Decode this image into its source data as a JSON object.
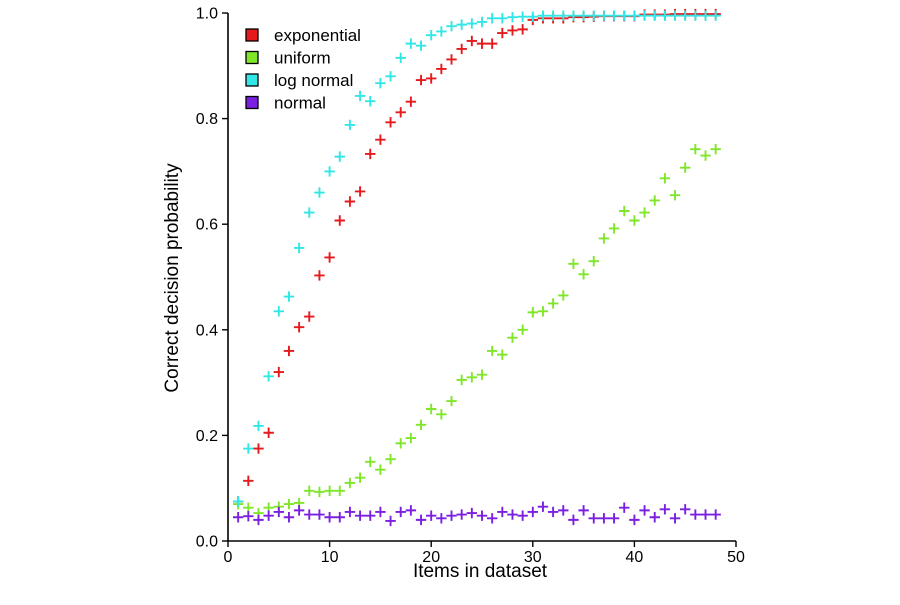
{
  "chart_data": {
    "type": "scatter",
    "xlabel": "Items in dataset",
    "ylabel": "Correct decision probability",
    "xlim": [
      0,
      50
    ],
    "ylim": [
      0,
      1
    ],
    "x_ticks": [
      "0",
      "10",
      "20",
      "30",
      "40",
      "50"
    ],
    "y_ticks": [
      "0.0",
      "0.2",
      "0.4",
      "0.6",
      "0.8",
      "1.0"
    ],
    "grid": false,
    "legend": "top-left",
    "marker": "plus",
    "x": [
      1,
      2,
      3,
      4,
      5,
      6,
      7,
      8,
      9,
      10,
      11,
      12,
      13,
      14,
      15,
      16,
      17,
      18,
      19,
      20,
      21,
      22,
      23,
      24,
      25,
      26,
      27,
      28,
      29,
      30,
      31,
      32,
      33,
      34,
      35,
      36,
      37,
      38,
      39,
      40,
      41,
      42,
      43,
      44,
      45,
      46,
      47,
      48
    ],
    "series": [
      {
        "name": "exponential",
        "color": "#e41a1c",
        "values": [
          0.075,
          0.114,
          0.175,
          0.205,
          0.32,
          0.36,
          0.405,
          0.425,
          0.503,
          0.537,
          0.607,
          0.643,
          0.662,
          0.733,
          0.76,
          0.793,
          0.812,
          0.832,
          0.873,
          0.876,
          0.894,
          0.912,
          0.932,
          0.947,
          0.942,
          0.942,
          0.962,
          0.967,
          0.969,
          0.987,
          0.99,
          0.99,
          0.99,
          0.992,
          0.992,
          0.993,
          0.994,
          0.994,
          0.994,
          0.994,
          0.997,
          0.997,
          0.997,
          0.998,
          0.998,
          0.998,
          0.998,
          0.998
        ]
      },
      {
        "name": "uniform",
        "color": "#7fe62a",
        "values": [
          0.07,
          0.063,
          0.053,
          0.063,
          0.065,
          0.07,
          0.072,
          0.095,
          0.093,
          0.095,
          0.095,
          0.11,
          0.12,
          0.15,
          0.135,
          0.155,
          0.185,
          0.195,
          0.22,
          0.25,
          0.24,
          0.265,
          0.305,
          0.31,
          0.315,
          0.36,
          0.353,
          0.385,
          0.4,
          0.433,
          0.435,
          0.45,
          0.465,
          0.525,
          0.505,
          0.53,
          0.573,
          0.592,
          0.625,
          0.607,
          0.622,
          0.645,
          0.687,
          0.655,
          0.707,
          0.742,
          0.73,
          0.742
        ]
      },
      {
        "name": "log normal",
        "color": "#33e6e6",
        "values": [
          0.075,
          0.175,
          0.218,
          0.312,
          0.435,
          0.463,
          0.555,
          0.622,
          0.66,
          0.7,
          0.728,
          0.788,
          0.843,
          0.833,
          0.867,
          0.88,
          0.915,
          0.942,
          0.938,
          0.958,
          0.965,
          0.975,
          0.978,
          0.98,
          0.983,
          0.99,
          0.99,
          0.992,
          0.993,
          0.993,
          0.995,
          0.995,
          0.995,
          0.995,
          0.995,
          0.995,
          0.995,
          0.995,
          0.995,
          0.995,
          0.995,
          0.995,
          0.995,
          0.995,
          0.995,
          0.995,
          0.995,
          0.995
        ]
      },
      {
        "name": "normal",
        "color": "#7b1fe0",
        "values": [
          0.045,
          0.047,
          0.04,
          0.048,
          0.055,
          0.045,
          0.058,
          0.05,
          0.05,
          0.045,
          0.045,
          0.055,
          0.048,
          0.048,
          0.055,
          0.038,
          0.055,
          0.058,
          0.04,
          0.048,
          0.043,
          0.048,
          0.05,
          0.053,
          0.048,
          0.043,
          0.055,
          0.05,
          0.048,
          0.055,
          0.065,
          0.055,
          0.058,
          0.04,
          0.058,
          0.043,
          0.043,
          0.043,
          0.063,
          0.04,
          0.058,
          0.045,
          0.06,
          0.043,
          0.06,
          0.05,
          0.05,
          0.05
        ]
      }
    ]
  }
}
